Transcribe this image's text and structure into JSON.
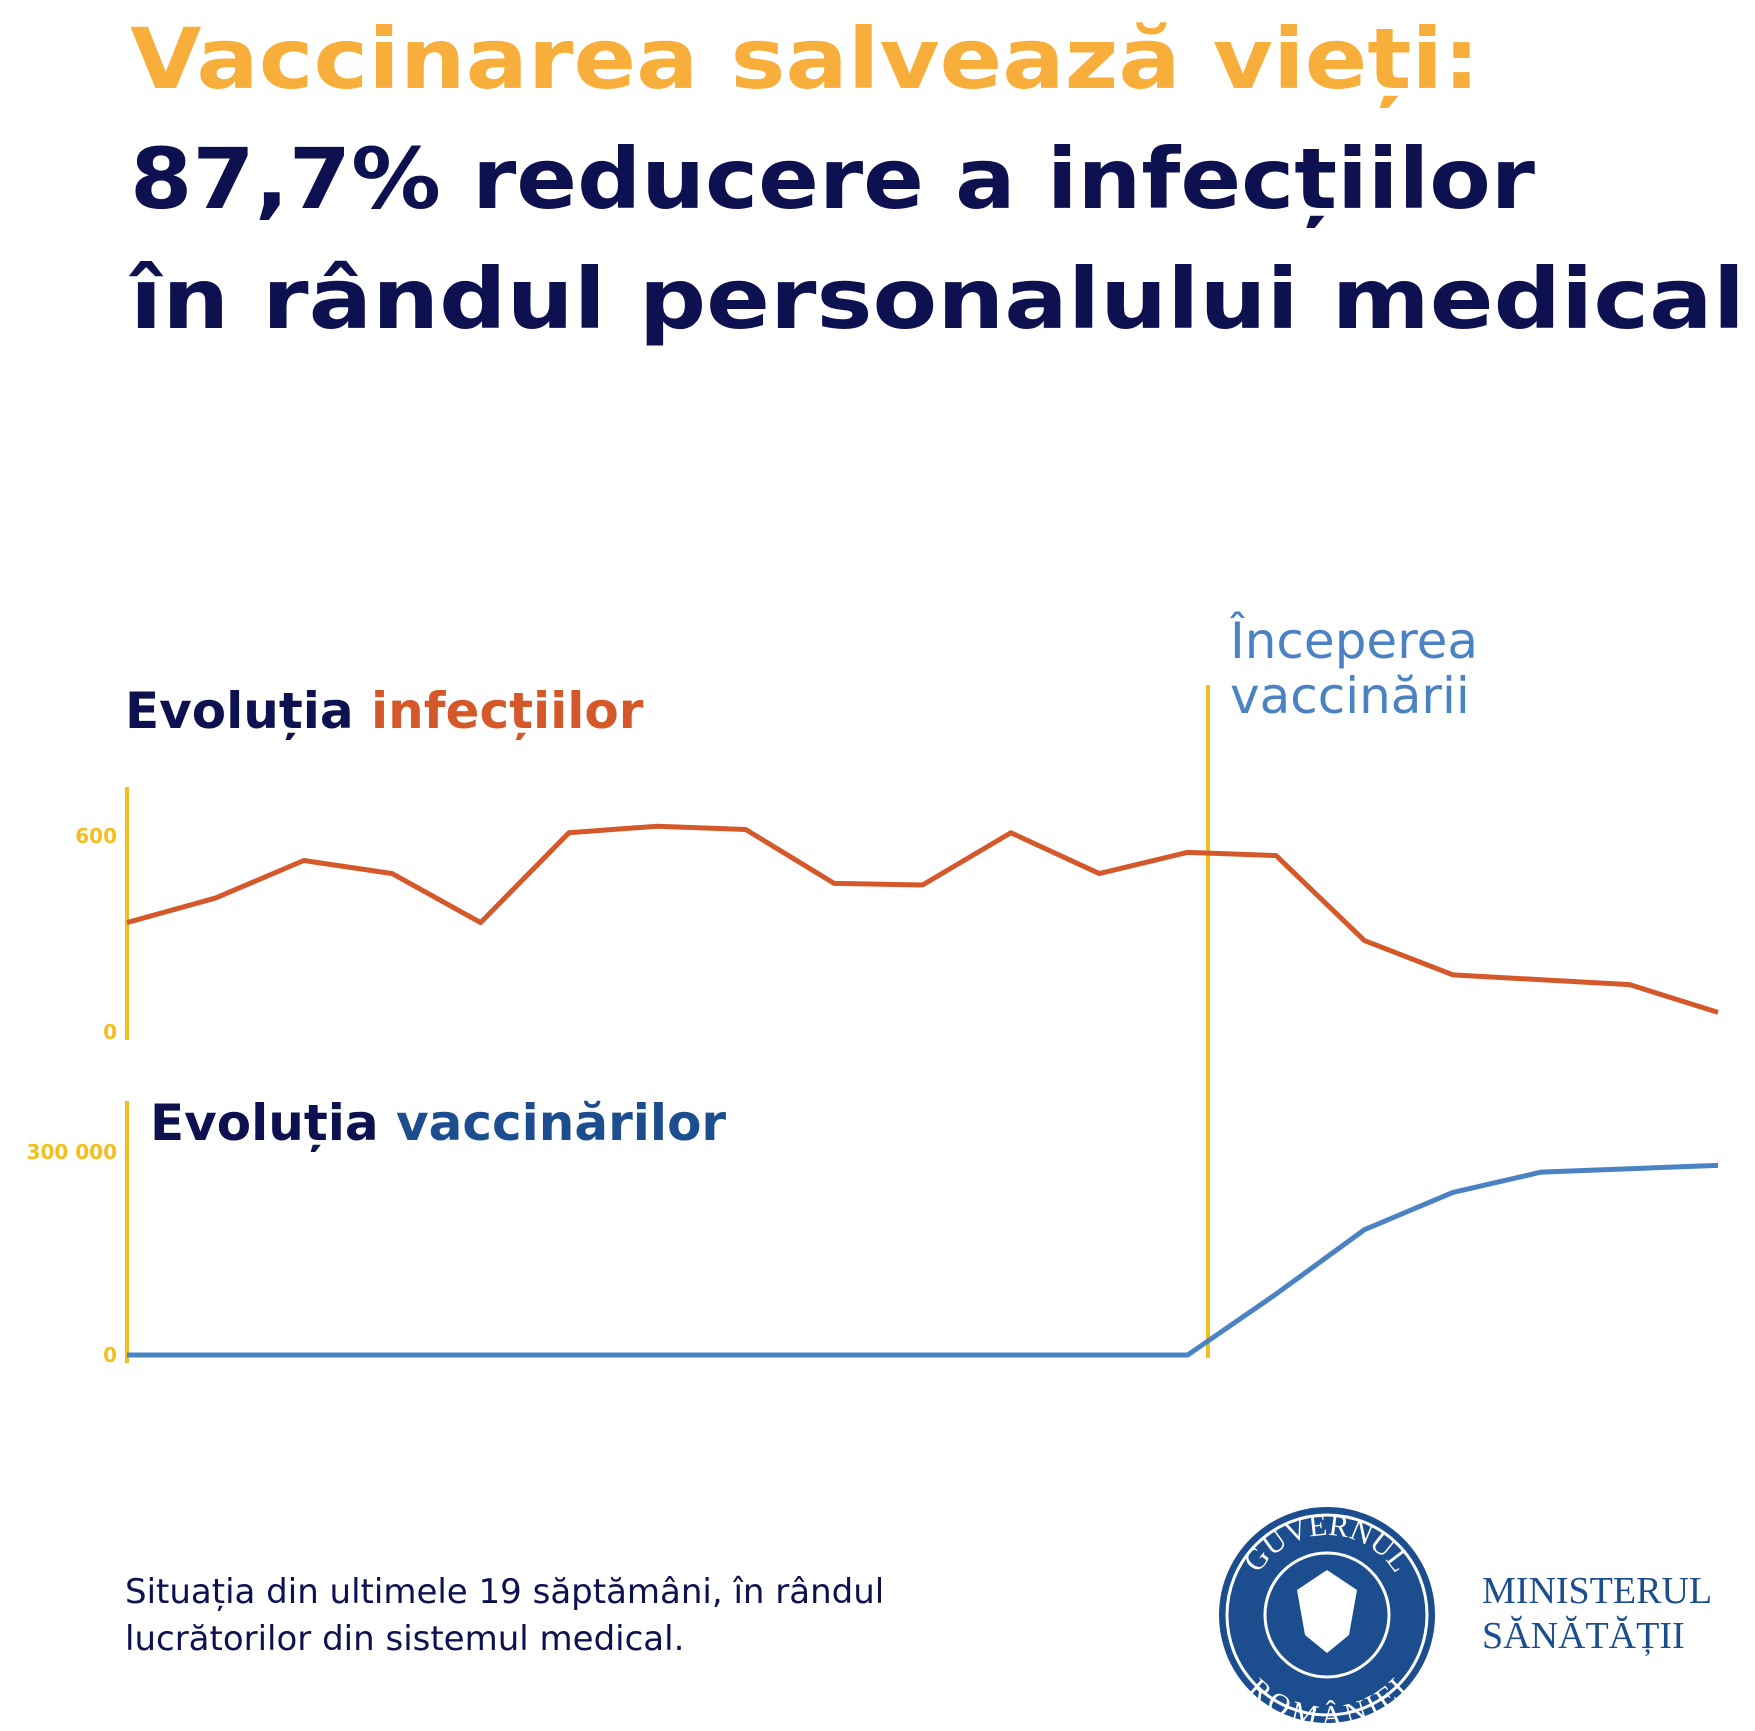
{
  "header": {
    "title_lines": [
      "Vaccinarea salvează vieți:",
      "87,7% reducere a infecțiilor",
      "în rândul personalului medical"
    ]
  },
  "chart_data": [
    {
      "type": "line",
      "title": [
        "Evoluția",
        "infecțiilor"
      ],
      "categories": [
        null,
        null,
        null,
        null,
        null,
        null,
        null,
        null,
        null,
        null,
        null,
        null,
        null,
        null,
        null,
        null,
        null,
        null,
        null
      ],
      "values": [
        335,
        410,
        525,
        485,
        335,
        610,
        630,
        620,
        455,
        450,
        610,
        485,
        550,
        540,
        280,
        175,
        160,
        145,
        60
      ],
      "color": "#d4582a",
      "axis_color": "#f5be1f",
      "ylim": [
        0,
        750
      ],
      "yticks": [
        0,
        600
      ]
    },
    {
      "type": "line",
      "title": [
        "Evoluția",
        "vaccinărilor"
      ],
      "categories": [
        null,
        null,
        null,
        null,
        null,
        null,
        null,
        null,
        null,
        null,
        null,
        null,
        null,
        null,
        null,
        null,
        null,
        null,
        null
      ],
      "values": [
        0,
        0,
        0,
        0,
        0,
        0,
        0,
        0,
        0,
        0,
        0,
        0,
        0,
        90000,
        185000,
        240000,
        270000,
        275000,
        280000
      ],
      "color": "#4a82c4",
      "axis_color": "#f5be1f",
      "ylim": [
        0,
        375000
      ],
      "yticks": [
        0,
        {
          "value": 300000,
          "label": "300 000"
        }
      ]
    }
  ],
  "annotation": [
    "Începerea",
    "vaccinării"
  ],
  "footer": [
    "Situația din ultimele 19 săptămâni, în rândul",
    "lucrătorilor din sistemul medical."
  ],
  "logo": {
    "top": "GUVERNUL",
    "bottom": "ROMÂNIEI",
    "ministry": [
      "MINISTERUL",
      "SĂNĂTĂȚII"
    ]
  }
}
